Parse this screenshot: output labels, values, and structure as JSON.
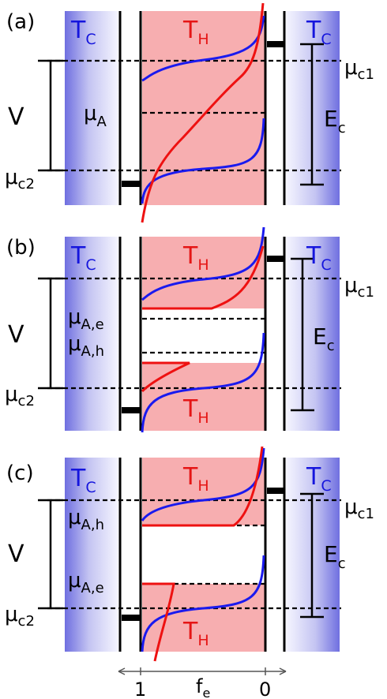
{
  "panels": [
    {
      "tag": "(a)",
      "cold_left": "T",
      "cold_left_sub": "C",
      "hot_top": "T",
      "hot_top_sub": "H",
      "hot_bottom": "",
      "hot_bottom_sub": "",
      "cold_right": "T",
      "cold_right_sub": "C",
      "volt": "V",
      "mu_c1": "μ",
      "mu_c1_sub": "c1",
      "mu_c2": "μ",
      "mu_c2_sub": "c2",
      "mu_mid1": "μ",
      "mu_mid1_sub": "A",
      "mu_mid2": "",
      "mu_mid2_sub": "",
      "ec": "E",
      "ec_sub": "c"
    },
    {
      "tag": "(b)",
      "cold_left": "T",
      "cold_left_sub": "C",
      "hot_top": "T",
      "hot_top_sub": "H",
      "hot_bottom": "T",
      "hot_bottom_sub": "H",
      "cold_right": "T",
      "cold_right_sub": "C",
      "volt": "V",
      "mu_c1": "μ",
      "mu_c1_sub": "c1",
      "mu_c2": "μ",
      "mu_c2_sub": "c2",
      "mu_mid1": "μ",
      "mu_mid1_sub": "A,e",
      "mu_mid2": "μ",
      "mu_mid2_sub": "A,h",
      "ec": "E",
      "ec_sub": "c"
    },
    {
      "tag": "(c)",
      "cold_left": "T",
      "cold_left_sub": "C",
      "hot_top": "T",
      "hot_top_sub": "H",
      "hot_bottom": "T",
      "hot_bottom_sub": "H",
      "cold_right": "T",
      "cold_right_sub": "C",
      "volt": "V",
      "mu_c1": "μ",
      "mu_c1_sub": "c1",
      "mu_c2": "μ",
      "mu_c2_sub": "c2",
      "mu_mid1": "μ",
      "mu_mid1_sub": "A,h",
      "mu_mid2": "μ",
      "mu_mid2_sub": "A,e",
      "ec": "E",
      "ec_sub": "c"
    }
  ],
  "axis": {
    "tick_left": "1",
    "tick_right": "0",
    "label": "f",
    "label_sub": "e"
  },
  "colors": {
    "hot": "#f7aeb0",
    "cold": "#6f6fe0",
    "fermi_cold": "#1a1aee",
    "fermi_hot": "#ee1111",
    "cold_text": "#1515dd",
    "hot_text": "#e51515"
  }
}
